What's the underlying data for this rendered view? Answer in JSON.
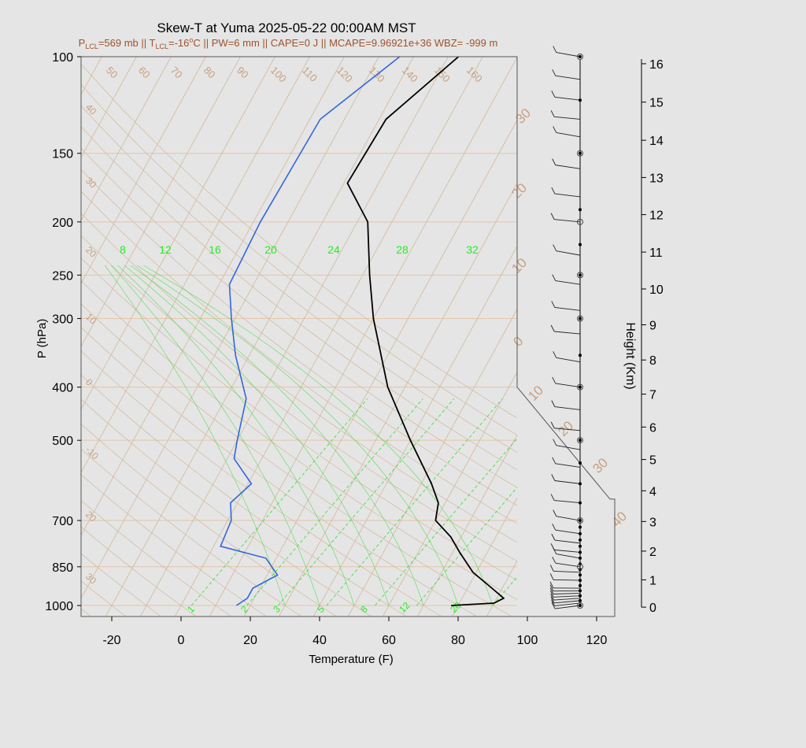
{
  "header": {
    "title": "Skew-T at Yuma 2025-05-22 00:00AM MST",
    "subtitle": {
      "p_lcl_prefix": "P",
      "p_lcl_sub": "LCL",
      "p_lcl_value": "=569 mb || T",
      "t_lcl_sub": "LCL",
      "t_lcl_value": "=-16",
      "t_deg": "o",
      "rest": "C || PW=6 mm || CAPE=0 J || MCAPE=9.96921e+36 WBZ= -999 m"
    }
  },
  "colors": {
    "background": "#e5e5e5",
    "temperature": "#000000",
    "dewpoint": "#3366dd",
    "isotherm": "#d2b89a",
    "isobar": "#e6c4a8",
    "mixing_ratio": "#33dd33",
    "label_tan": "#c8a07e",
    "subtitle": "#a0522d"
  },
  "chart_data": {
    "type": "line",
    "title": "Skew-T at Yuma 2025-05-22 00:00AM MST",
    "xlabel": "Temperature (F)",
    "ylabel": "P (hPa)",
    "y2label": "Height (Km)",
    "x_ticks": [
      -20,
      0,
      20,
      40,
      60,
      80,
      100,
      120
    ],
    "p_ticks": [
      100,
      150,
      200,
      250,
      300,
      400,
      500,
      700,
      850,
      1000
    ],
    "height_ticks": [
      {
        "km": 0,
        "p": 1007
      },
      {
        "km": 1,
        "p": 898
      },
      {
        "km": 2,
        "p": 796
      },
      {
        "km": 3,
        "p": 703
      },
      {
        "km": 4,
        "p": 618
      },
      {
        "km": 5,
        "p": 542
      },
      {
        "km": 6,
        "p": 473
      },
      {
        "km": 7,
        "p": 412
      },
      {
        "km": 8,
        "p": 357
      },
      {
        "km": 9,
        "p": 308
      },
      {
        "km": 10,
        "p": 265
      },
      {
        "km": 11,
        "p": 227
      },
      {
        "km": 12,
        "p": 194
      },
      {
        "km": 13,
        "p": 166
      },
      {
        "km": 14,
        "p": 142
      },
      {
        "km": 15,
        "p": 121
      },
      {
        "km": 16,
        "p": 103
      }
    ],
    "isotherm_labels": [
      "50",
      "60",
      "70",
      "80",
      "90",
      "100",
      "110",
      "120",
      "130",
      "140",
      "150",
      "160"
    ],
    "isotherm_left_labels": [
      "40",
      "30",
      "20",
      "10",
      "0",
      "-10",
      "20",
      "30"
    ],
    "isotherm_right_labels": [
      "30",
      "20",
      "10",
      "0",
      "10",
      "20",
      "30",
      "40"
    ],
    "theta_e_labels": [
      "8",
      "12",
      "16",
      "20",
      "24",
      "28",
      "32"
    ],
    "mixing_ratio_labels": [
      "1",
      "2",
      "3",
      "5",
      "8",
      "12",
      "20"
    ],
    "series": [
      {
        "name": "",
        "color": "#000000",
        "points": [
          {
            "p": 1000,
            "x": 78
          },
          {
            "p": 990,
            "x": 90
          },
          {
            "p": 970,
            "x": 92
          },
          {
            "p": 930,
            "x": 87
          },
          {
            "p": 870,
            "x": 79
          },
          {
            "p": 800,
            "x": 72
          },
          {
            "p": 750,
            "x": 67
          },
          {
            "p": 700,
            "x": 60
          },
          {
            "p": 650,
            "x": 58
          },
          {
            "p": 600,
            "x": 53
          },
          {
            "p": 500,
            "x": 40
          },
          {
            "p": 400,
            "x": 25
          },
          {
            "p": 300,
            "x": 10
          },
          {
            "p": 250,
            "x": 2
          },
          {
            "p": 200,
            "x": -7
          },
          {
            "p": 170,
            "x": -19
          },
          {
            "p": 130,
            "x": -18
          },
          {
            "p": 100,
            "x": -7
          }
        ]
      },
      {
        "name": "",
        "color": "#3366dd",
        "points": [
          {
            "p": 1000,
            "x": 16
          },
          {
            "p": 970,
            "x": 18
          },
          {
            "p": 930,
            "x": 18
          },
          {
            "p": 880,
            "x": 23
          },
          {
            "p": 820,
            "x": 17
          },
          {
            "p": 780,
            "x": 2
          },
          {
            "p": 700,
            "x": 1
          },
          {
            "p": 650,
            "x": -2
          },
          {
            "p": 600,
            "x": 1
          },
          {
            "p": 540,
            "x": -8
          },
          {
            "p": 500,
            "x": -10
          },
          {
            "p": 420,
            "x": -14
          },
          {
            "p": 350,
            "x": -24
          },
          {
            "p": 300,
            "x": -31
          },
          {
            "p": 260,
            "x": -37
          },
          {
            "p": 200,
            "x": -38
          },
          {
            "p": 130,
            "x": -37
          },
          {
            "p": 100,
            "x": -24
          }
        ]
      }
    ],
    "wind_levels_p": [
      1000,
      990,
      980,
      970,
      960,
      950,
      940,
      930,
      900,
      870,
      850,
      820,
      800,
      770,
      740,
      700,
      650,
      600,
      560,
      520,
      480,
      440,
      400,
      360,
      320,
      290,
      260,
      230,
      200,
      180,
      160,
      140,
      130,
      120,
      110,
      100
    ],
    "height_markers_p": [
      1000,
      980,
      960,
      940,
      920,
      900,
      880,
      860,
      840,
      820,
      800,
      780,
      760,
      740,
      720,
      700,
      650,
      600,
      550,
      500,
      400,
      350,
      300,
      250,
      220,
      190,
      150,
      120,
      100
    ],
    "height_markers_hollow_p": [
      1000,
      850,
      700,
      500,
      400,
      300,
      250,
      200,
      150,
      100
    ]
  }
}
